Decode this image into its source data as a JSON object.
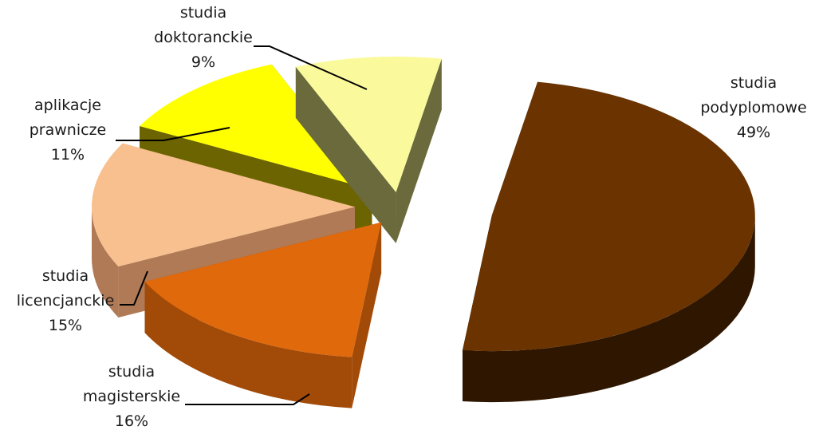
{
  "chart_data": {
    "type": "pie",
    "style": "3d-exploded",
    "slices": [
      {
        "name": "studia podyplomowe",
        "lines": [
          "studia",
          "podyplomowe"
        ],
        "pct_label": "49%",
        "value": 49,
        "color": "#6a3300",
        "side_color": "#2e1600"
      },
      {
        "name": "studia magisterskie",
        "lines": [
          "studia",
          "magisterskie"
        ],
        "pct_label": "16%",
        "value": 16,
        "color": "#e0690c",
        "side_color": "#a24a08"
      },
      {
        "name": "studia licencjanckie",
        "lines": [
          "studia",
          "licencjanckie"
        ],
        "pct_label": "15%",
        "value": 15,
        "color": "#f7c08e",
        "side_color": "#b07a56"
      },
      {
        "name": "aplikacje prawnicze",
        "lines": [
          "aplikacje",
          "prawnicze"
        ],
        "pct_label": "11%",
        "value": 11,
        "color": "#ffff00",
        "side_color": "#6b6400"
      },
      {
        "name": "studia doktoranckie",
        "lines": [
          "studia",
          "doktoranckie"
        ],
        "pct_label": "9%",
        "value": 9,
        "color": "#fafa9c",
        "side_color": "#6a6a3c"
      }
    ]
  }
}
